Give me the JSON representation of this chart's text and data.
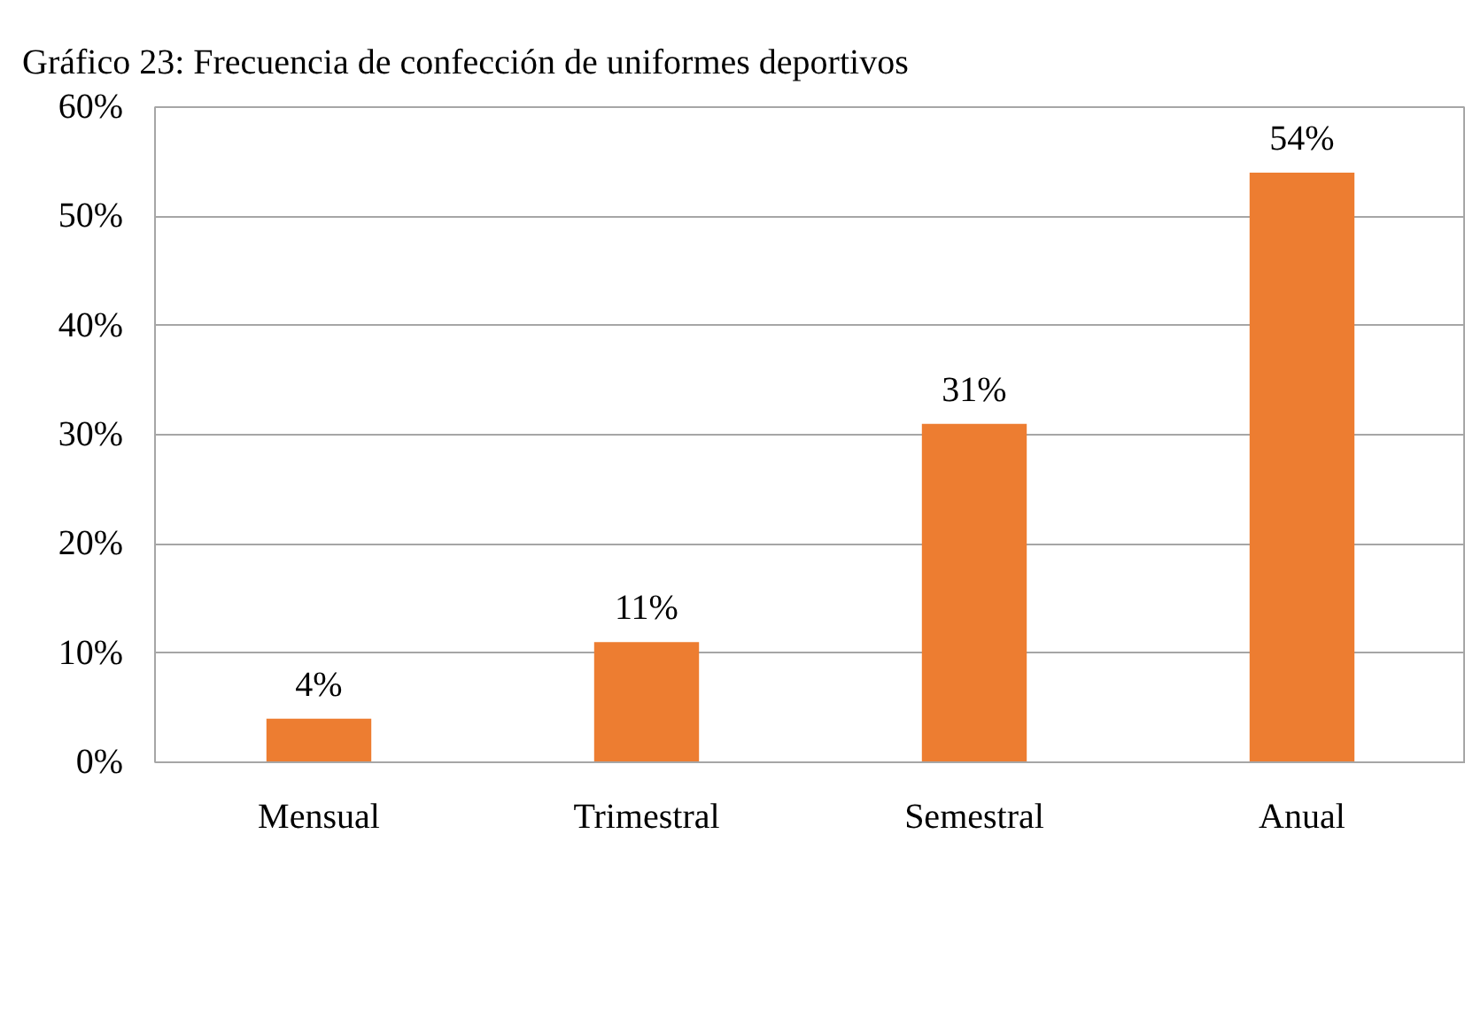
{
  "chart_data": {
    "type": "bar",
    "title": "Gráfico 23: Frecuencia de confección de uniformes deportivos",
    "categories": [
      "Mensual",
      "Trimestral",
      "Semestral",
      "Anual"
    ],
    "values": [
      4,
      11,
      31,
      54
    ],
    "color": "#ed7d31",
    "value_labels": [
      "4%",
      "11%",
      "31%",
      "54%"
    ],
    "ylim": [
      0,
      60
    ],
    "yticks": [
      {
        "value": 0,
        "label": "0%"
      },
      {
        "value": 10,
        "label": "10%"
      },
      {
        "value": 20,
        "label": "20%"
      },
      {
        "value": 30,
        "label": "30%"
      },
      {
        "value": 40,
        "label": "40%"
      },
      {
        "value": 50,
        "label": "50%"
      },
      {
        "value": 60,
        "label": "60%"
      }
    ],
    "grid": "y"
  }
}
